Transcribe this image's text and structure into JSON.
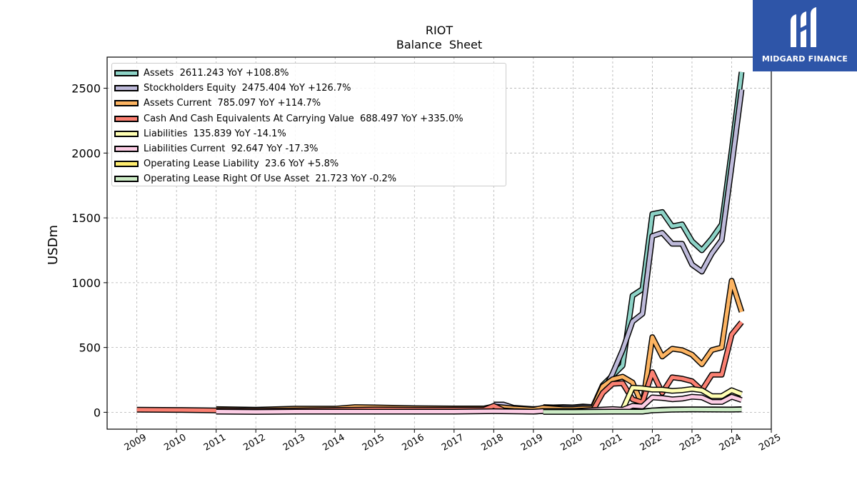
{
  "chart_data": {
    "type": "line",
    "title": "RIOT",
    "subtitle": "Balance  Sheet",
    "ylabel": "USDm",
    "xlabel": "",
    "x_ticks": [
      "2009",
      "2010",
      "2011",
      "2012",
      "2013",
      "2014",
      "2015",
      "2016",
      "2017",
      "2018",
      "2019",
      "2020",
      "2021",
      "2022",
      "2023",
      "2024",
      "2025"
    ],
    "y_ticks": [
      "0",
      "500",
      "1000",
      "1500",
      "2000",
      "2500"
    ],
    "xlim": [
      2008.25,
      2025.0
    ],
    "ylim": [
      -130,
      2740
    ],
    "grid": true,
    "legend_position": "top-left",
    "series": [
      {
        "name": "Assets",
        "legend": "Assets  2611.243 YoY +108.8%",
        "color": "#8dd3c7",
        "points": [
          [
            2019.25,
            40
          ],
          [
            2019.5,
            38
          ],
          [
            2019.75,
            40
          ],
          [
            2020.0,
            38
          ],
          [
            2020.25,
            45
          ],
          [
            2020.5,
            40
          ],
          [
            2020.75,
            210
          ],
          [
            2021.0,
            285
          ],
          [
            2021.25,
            360
          ],
          [
            2021.5,
            900
          ],
          [
            2021.75,
            950
          ],
          [
            2022.0,
            1530
          ],
          [
            2022.25,
            1545
          ],
          [
            2022.5,
            1435
          ],
          [
            2022.75,
            1450
          ],
          [
            2023.0,
            1320
          ],
          [
            2023.25,
            1250
          ],
          [
            2023.5,
            1340
          ],
          [
            2023.75,
            1450
          ],
          [
            2024.0,
            2020
          ],
          [
            2024.25,
            2625
          ]
        ]
      },
      {
        "name": "Stockholders Equity",
        "legend": "Stockholders Equity  2475.404 YoY +126.7%",
        "color": "#bebada",
        "points": [
          [
            2018.0,
            60
          ],
          [
            2018.25,
            60
          ],
          [
            2018.5,
            35
          ],
          [
            2018.75,
            30
          ],
          [
            2019.0,
            25
          ],
          [
            2019.25,
            30
          ],
          [
            2019.5,
            35
          ],
          [
            2019.75,
            35
          ],
          [
            2020.0,
            35
          ],
          [
            2020.25,
            40
          ],
          [
            2020.5,
            40
          ],
          [
            2020.75,
            150
          ],
          [
            2021.0,
            300
          ],
          [
            2021.25,
            480
          ],
          [
            2021.5,
            700
          ],
          [
            2021.75,
            760
          ],
          [
            2022.0,
            1360
          ],
          [
            2022.25,
            1385
          ],
          [
            2022.5,
            1300
          ],
          [
            2022.75,
            1300
          ],
          [
            2023.0,
            1140
          ],
          [
            2023.25,
            1085
          ],
          [
            2023.5,
            1225
          ],
          [
            2023.75,
            1330
          ],
          [
            2024.0,
            1900
          ],
          [
            2024.25,
            2490
          ]
        ]
      },
      {
        "name": "Assets Current",
        "legend": "Assets Current  785.097 YoY +114.7%",
        "color": "#fdb462",
        "points": [
          [
            2011.0,
            25
          ],
          [
            2012.0,
            20
          ],
          [
            2013.0,
            28
          ],
          [
            2014.0,
            28
          ],
          [
            2014.5,
            40
          ],
          [
            2015.0,
            38
          ],
          [
            2016.0,
            32
          ],
          [
            2017.0,
            30
          ],
          [
            2017.75,
            30
          ],
          [
            2018.0,
            45
          ],
          [
            2018.5,
            30
          ],
          [
            2019.0,
            20
          ],
          [
            2019.25,
            35
          ],
          [
            2019.5,
            30
          ],
          [
            2019.75,
            25
          ],
          [
            2020.0,
            25
          ],
          [
            2020.25,
            30
          ],
          [
            2020.5,
            30
          ],
          [
            2020.75,
            200
          ],
          [
            2021.0,
            255
          ],
          [
            2021.25,
            275
          ],
          [
            2021.5,
            230
          ],
          [
            2021.75,
            50
          ],
          [
            2022.0,
            580
          ],
          [
            2022.25,
            430
          ],
          [
            2022.5,
            490
          ],
          [
            2022.75,
            480
          ],
          [
            2023.0,
            445
          ],
          [
            2023.25,
            370
          ],
          [
            2023.5,
            480
          ],
          [
            2023.75,
            500
          ],
          [
            2024.0,
            1015
          ],
          [
            2024.25,
            775
          ]
        ]
      },
      {
        "name": "Cash And Cash Equivalents At Carrying Value",
        "legend": "Cash And Cash Equivalents At Carrying Value  688.497 YoY +335.0%",
        "color": "#fb8072",
        "points": [
          [
            2009.0,
            20
          ],
          [
            2010.0,
            18
          ],
          [
            2011.0,
            15
          ],
          [
            2011.25,
            15
          ],
          [
            2012.0,
            12
          ],
          [
            2013.0,
            15
          ],
          [
            2014.0,
            18
          ],
          [
            2015.0,
            22
          ],
          [
            2016.0,
            20
          ],
          [
            2017.0,
            20
          ],
          [
            2017.75,
            20
          ],
          [
            2018.0,
            50
          ],
          [
            2018.25,
            15
          ],
          [
            2018.5,
            10
          ],
          [
            2019.0,
            5
          ],
          [
            2019.25,
            10
          ],
          [
            2019.5,
            10
          ],
          [
            2019.75,
            10
          ],
          [
            2020.0,
            10
          ],
          [
            2020.25,
            12
          ],
          [
            2020.5,
            12
          ],
          [
            2020.75,
            150
          ],
          [
            2021.0,
            220
          ],
          [
            2021.25,
            225
          ],
          [
            2021.5,
            100
          ],
          [
            2021.75,
            75
          ],
          [
            2022.0,
            310
          ],
          [
            2022.25,
            150
          ],
          [
            2022.5,
            270
          ],
          [
            2022.75,
            260
          ],
          [
            2023.0,
            240
          ],
          [
            2023.25,
            170
          ],
          [
            2023.5,
            290
          ],
          [
            2023.75,
            290
          ],
          [
            2024.0,
            600
          ],
          [
            2024.25,
            695
          ]
        ]
      },
      {
        "name": "Liabilities",
        "legend": "Liabilities  135.839 YoY -14.1%",
        "color": "#ffffb3",
        "points": [
          [
            2021.25,
            20
          ],
          [
            2021.5,
            190
          ],
          [
            2021.75,
            185
          ],
          [
            2022.0,
            175
          ],
          [
            2022.25,
            175
          ],
          [
            2022.5,
            165
          ],
          [
            2022.75,
            170
          ],
          [
            2023.0,
            180
          ],
          [
            2023.25,
            170
          ],
          [
            2023.5,
            125
          ],
          [
            2023.75,
            125
          ],
          [
            2024.0,
            170
          ],
          [
            2024.25,
            140
          ]
        ]
      },
      {
        "name": "Liabilities Current",
        "legend": "Liabilities Current  92.647 YoY -17.3%",
        "color": "#fccde5",
        "points": [
          [
            2011.0,
            5
          ],
          [
            2012.0,
            3
          ],
          [
            2013.0,
            5
          ],
          [
            2014.0,
            5
          ],
          [
            2015.0,
            5
          ],
          [
            2016.0,
            5
          ],
          [
            2017.0,
            5
          ],
          [
            2018.0,
            8
          ],
          [
            2019.0,
            5
          ],
          [
            2019.25,
            10
          ],
          [
            2020.0,
            10
          ],
          [
            2021.0,
            25
          ],
          [
            2021.25,
            20
          ],
          [
            2021.5,
            50
          ],
          [
            2021.75,
            45
          ],
          [
            2022.0,
            115
          ],
          [
            2022.25,
            110
          ],
          [
            2022.5,
            100
          ],
          [
            2022.75,
            105
          ],
          [
            2023.0,
            120
          ],
          [
            2023.25,
            115
          ],
          [
            2023.5,
            80
          ],
          [
            2023.75,
            80
          ],
          [
            2024.0,
            120
          ],
          [
            2024.25,
            95
          ]
        ]
      },
      {
        "name": "Operating Lease Liability",
        "legend": "Operating Lease Liability  23.6 YoY +5.8%",
        "color": "#ffed6f",
        "points": [
          [
            2019.25,
            5
          ],
          [
            2020.0,
            5
          ],
          [
            2021.0,
            5
          ],
          [
            2021.5,
            5
          ],
          [
            2021.75,
            8
          ],
          [
            2022.0,
            15
          ],
          [
            2022.25,
            20
          ],
          [
            2022.5,
            22
          ],
          [
            2022.75,
            23
          ],
          [
            2023.0,
            23
          ],
          [
            2023.5,
            23
          ],
          [
            2024.0,
            22
          ],
          [
            2024.25,
            24
          ]
        ]
      },
      {
        "name": "Operating Lease Right Of Use Asset",
        "legend": "Operating Lease Right Of Use Asset  21.723 YoY -0.2%",
        "color": "#ccebc5",
        "points": [
          [
            2019.25,
            3
          ],
          [
            2020.0,
            3
          ],
          [
            2021.0,
            5
          ],
          [
            2021.75,
            5
          ],
          [
            2022.0,
            15
          ],
          [
            2022.5,
            20
          ],
          [
            2023.0,
            22
          ],
          [
            2024.0,
            21
          ],
          [
            2024.25,
            22
          ]
        ]
      }
    ]
  },
  "logo": {
    "name": "MIDGARD FINANCE"
  }
}
